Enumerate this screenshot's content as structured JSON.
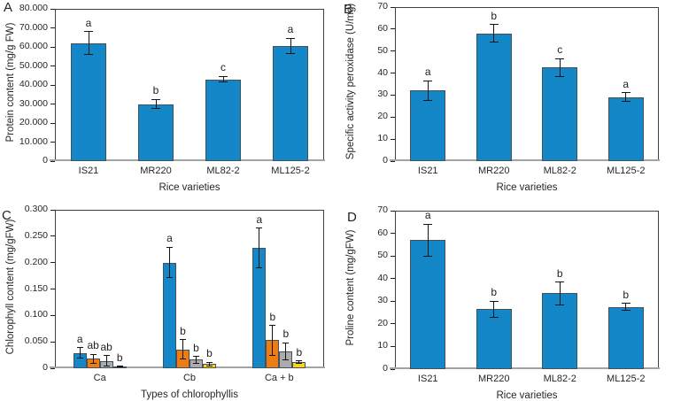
{
  "figure": {
    "background": "#ffffff"
  },
  "chart_data": [
    {
      "panel_label": "A",
      "type": "bar",
      "title": "",
      "ylabel": "Protein content (mg/g FW)",
      "xlabel": "Rice varieties",
      "categories": [
        "IS21",
        "MR220",
        "ML82-2",
        "ML125-2"
      ],
      "ylim": [
        0,
        80
      ],
      "ytick_labels": [
        "0",
        "10.000",
        "20.000",
        "30.000",
        "40.000",
        "50.000",
        "60.000",
        "70.000",
        "80.000"
      ],
      "ytick_values": [
        0,
        10,
        20,
        30,
        40,
        50,
        60,
        70,
        80
      ],
      "grid": false,
      "legend": "none",
      "series": [
        {
          "name": "protein-content",
          "color": "#1487C9",
          "values": [
            62,
            30,
            43,
            60.5
          ],
          "errors": [
            6,
            2.5,
            1.5,
            4
          ],
          "sig_letters": [
            "a",
            "b",
            "c",
            "a"
          ]
        }
      ]
    },
    {
      "panel_label": "B",
      "type": "bar",
      "title": "",
      "ylabel": "Specific activity peroxidase (U/mg)",
      "xlabel": "Rice varieties",
      "categories": [
        "IS21",
        "MR220",
        "ML82-2",
        "ML125-2"
      ],
      "ylim": [
        0,
        70
      ],
      "ytick_labels": [
        "0",
        "10",
        "20",
        "30",
        "40",
        "50",
        "60",
        "70"
      ],
      "ytick_values": [
        0,
        10,
        20,
        30,
        40,
        50,
        60,
        70
      ],
      "grid": false,
      "legend": "none",
      "series": [
        {
          "name": "peroxidase-activity",
          "color": "#1487C9",
          "values": [
            32,
            58,
            42.5,
            29
          ],
          "errors": [
            4.5,
            4,
            4,
            2
          ],
          "sig_letters": [
            "a",
            "b",
            "c",
            "a"
          ]
        }
      ]
    },
    {
      "panel_label": "C",
      "type": "bar",
      "title": "",
      "ylabel": "Chlorophyll content (mg/gFW)",
      "xlabel": "Types of chlorophyllis",
      "categories": [
        "Ca",
        "Cb",
        "Ca + b"
      ],
      "ylim": [
        0,
        0.3
      ],
      "ytick_labels": [
        "0",
        "0.050",
        "0.100",
        "0.150",
        "0.200",
        "0.250",
        "0.300"
      ],
      "ytick_values": [
        0,
        0.05,
        0.1,
        0.15,
        0.2,
        0.25,
        0.3
      ],
      "grid": false,
      "legend": "none",
      "series": [
        {
          "name": "blue-series",
          "color": "#1487C9",
          "values": [
            0.029,
            0.2,
            0.228
          ],
          "errors": [
            0.01,
            0.029,
            0.037
          ],
          "sig_letters": [
            "a",
            "a",
            "a"
          ]
        },
        {
          "name": "orange-series",
          "color": "#EE7C15",
          "values": [
            0.018,
            0.036,
            0.053
          ],
          "errors": [
            0.008,
            0.018,
            0.028
          ],
          "sig_letters": [
            "ab",
            "b",
            "b"
          ]
        },
        {
          "name": "gray-series",
          "color": "#ABABAB",
          "values": [
            0.014,
            0.016,
            0.032
          ],
          "errors": [
            0.01,
            0.006,
            0.016
          ],
          "sig_letters": [
            "ab",
            "b",
            "b"
          ]
        },
        {
          "name": "yellow-series",
          "color": "#FFD40A",
          "values": [
            0.003,
            0.008,
            0.012
          ],
          "errors": [
            0.001,
            0.003,
            0.002
          ],
          "sig_letters": [
            "b",
            "b",
            "b"
          ]
        }
      ]
    },
    {
      "panel_label": "D",
      "type": "bar",
      "title": "",
      "ylabel": "Proline content (mg/gFW)",
      "xlabel": "Rice varieties",
      "categories": [
        "IS21",
        "MR220",
        "ML82-2",
        "ML125-2"
      ],
      "ylim": [
        0,
        70
      ],
      "ytick_labels": [
        "0",
        "10",
        "20",
        "30",
        "40",
        "50",
        "60",
        "70"
      ],
      "ytick_values": [
        0,
        10,
        20,
        30,
        40,
        50,
        60,
        70
      ],
      "grid": false,
      "legend": "none",
      "series": [
        {
          "name": "proline-content",
          "color": "#1487C9",
          "values": [
            57,
            26.5,
            33.5,
            27.5
          ],
          "errors": [
            7,
            3.5,
            5,
            1.5
          ],
          "sig_letters": [
            "a",
            "b",
            "b",
            "b"
          ]
        }
      ]
    }
  ]
}
